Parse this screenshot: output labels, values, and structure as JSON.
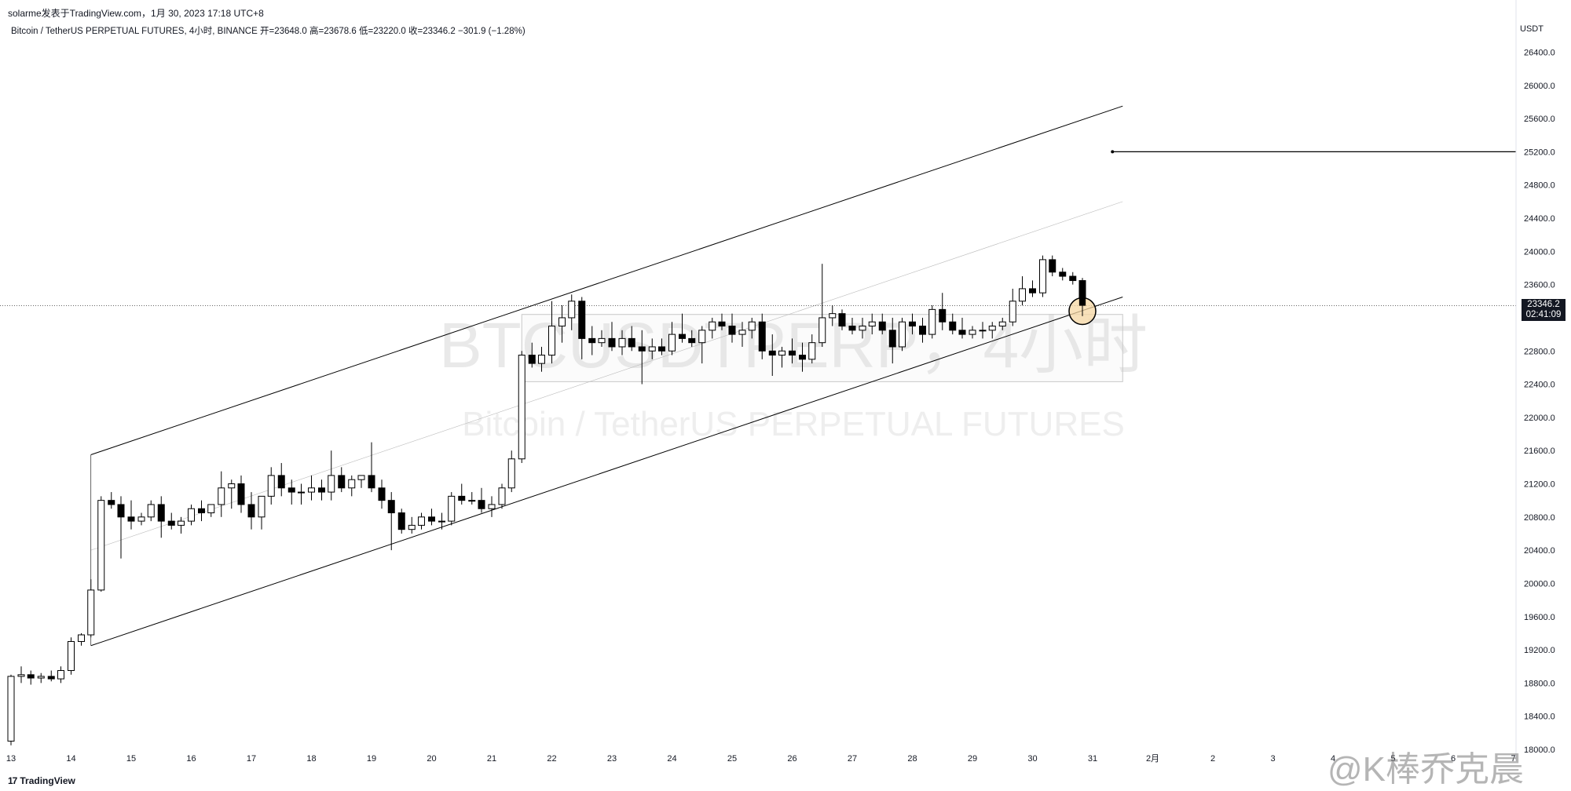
{
  "header": {
    "publish_line": "solarme发表于TradingView.com，1月 30, 2023 17:18 UTC+8",
    "symbol_line": "Bitcoin / TetherUS PERPETUAL FUTURES, 4小时, BINANCE",
    "ohlc": {
      "open_label": "开",
      "open": "=23648.0",
      "high_label": "高",
      "high": "=23678.6",
      "low_label": "低",
      "low": "=23220.0",
      "close_label": "收",
      "close": "=23346.2",
      "change": "−301.9 (−1.28%)"
    }
  },
  "watermark": {
    "line1": "BTCUSDTPERP，4小时",
    "line2": "Bitcoin / TetherUS PERPETUAL FUTURES"
  },
  "price_tag": {
    "price": "23346.2",
    "countdown": "02:41:09"
  },
  "brand": {
    "logo_mark": "17",
    "logo_text": "TradingView"
  },
  "weibo_watermark": "@K棒乔克晨",
  "colors": {
    "up": "#ffffff",
    "down": "#000000",
    "wick": "#000000",
    "highlight": "#f5d7a3"
  },
  "chart_data": {
    "type": "candlestick",
    "currency_label": "USDT",
    "y_ticks": [
      "26400.0",
      "26000.0",
      "25600.0",
      "25200.0",
      "24800.0",
      "24400.0",
      "24000.0",
      "23600.0",
      "22800.0",
      "22400.0",
      "22000.0",
      "21600.0",
      "21200.0",
      "20800.0",
      "20400.0",
      "20000.0",
      "19600.0",
      "19200.0",
      "18800.0",
      "18400.0",
      "18000.0"
    ],
    "y_tick_values": [
      26400,
      26000,
      25600,
      25200,
      24800,
      24400,
      24000,
      23600,
      22800,
      22400,
      22000,
      21600,
      21200,
      20800,
      20400,
      20000,
      19600,
      19200,
      18800,
      18400,
      18000
    ],
    "ylim": [
      18000,
      26650
    ],
    "x_ticks": [
      "13",
      "14",
      "15",
      "16",
      "17",
      "18",
      "19",
      "20",
      "21",
      "22",
      "23",
      "24",
      "25",
      "26",
      "27",
      "28",
      "29",
      "30",
      "31",
      "2月",
      "2",
      "3",
      "4",
      "5",
      "6",
      "7"
    ],
    "x_range_days": [
      0,
      26.3
    ],
    "candles": [
      [
        0.0,
        18100,
        18900,
        18050,
        18880
      ],
      [
        0.17,
        18880,
        19000,
        18800,
        18900
      ],
      [
        0.33,
        18900,
        18950,
        18780,
        18860
      ],
      [
        0.5,
        18860,
        18920,
        18800,
        18880
      ],
      [
        0.67,
        18880,
        18950,
        18820,
        18850
      ],
      [
        0.83,
        18850,
        19000,
        18800,
        18950
      ],
      [
        1.0,
        18950,
        19350,
        18900,
        19300
      ],
      [
        1.17,
        19300,
        19400,
        19250,
        19380
      ],
      [
        1.33,
        19380,
        20050,
        19350,
        19920
      ],
      [
        1.5,
        19920,
        21050,
        19900,
        21000
      ],
      [
        1.67,
        21000,
        21100,
        20900,
        20950
      ],
      [
        1.83,
        20950,
        21050,
        20300,
        20800
      ],
      [
        2.0,
        20800,
        21000,
        20650,
        20750
      ],
      [
        2.17,
        20750,
        20850,
        20700,
        20800
      ],
      [
        2.33,
        20800,
        21000,
        20750,
        20950
      ],
      [
        2.5,
        20950,
        21050,
        20550,
        20750
      ],
      [
        2.67,
        20750,
        20850,
        20650,
        20700
      ],
      [
        2.83,
        20700,
        20800,
        20600,
        20750
      ],
      [
        3.0,
        20750,
        20950,
        20700,
        20900
      ],
      [
        3.17,
        20900,
        21000,
        20750,
        20850
      ],
      [
        3.33,
        20850,
        20950,
        20800,
        20950
      ],
      [
        3.5,
        20950,
        21350,
        20800,
        21150
      ],
      [
        3.67,
        21150,
        21250,
        20900,
        21200
      ],
      [
        3.83,
        21200,
        21300,
        20850,
        20950
      ],
      [
        4.0,
        20950,
        21100,
        20650,
        20800
      ],
      [
        4.17,
        20800,
        21050,
        20650,
        21050
      ],
      [
        4.33,
        21050,
        21400,
        20950,
        21300
      ],
      [
        4.5,
        21300,
        21450,
        21050,
        21150
      ],
      [
        4.67,
        21150,
        21250,
        20950,
        21100
      ],
      [
        4.83,
        21100,
        21200,
        20950,
        21100
      ],
      [
        5.0,
        21100,
        21300,
        21000,
        21150
      ],
      [
        5.17,
        21150,
        21250,
        21000,
        21100
      ],
      [
        5.33,
        21100,
        21600,
        21000,
        21300
      ],
      [
        5.5,
        21300,
        21400,
        21100,
        21150
      ],
      [
        5.67,
        21150,
        21300,
        21050,
        21250
      ],
      [
        5.83,
        21250,
        21300,
        21150,
        21300
      ],
      [
        6.0,
        21300,
        21700,
        21100,
        21150
      ],
      [
        6.17,
        21150,
        21250,
        20900,
        21000
      ],
      [
        6.33,
        21000,
        21100,
        20400,
        20850
      ],
      [
        6.5,
        20850,
        20900,
        20600,
        20650
      ],
      [
        6.67,
        20650,
        20800,
        20600,
        20700
      ],
      [
        6.83,
        20700,
        20850,
        20650,
        20800
      ],
      [
        7.0,
        20800,
        20900,
        20700,
        20750
      ],
      [
        7.17,
        20750,
        20850,
        20650,
        20750
      ],
      [
        7.33,
        20750,
        21100,
        20700,
        21050
      ],
      [
        7.5,
        21050,
        21200,
        20950,
        21000
      ],
      [
        7.67,
        21000,
        21100,
        20950,
        21000
      ],
      [
        7.83,
        21000,
        21150,
        20850,
        20900
      ],
      [
        8.0,
        20900,
        21050,
        20800,
        20950
      ],
      [
        8.17,
        20950,
        21200,
        20900,
        21150
      ],
      [
        8.33,
        21150,
        21600,
        21100,
        21500
      ],
      [
        8.5,
        21500,
        22800,
        21450,
        22750
      ],
      [
        8.67,
        22750,
        22900,
        22600,
        22650
      ],
      [
        8.83,
        22650,
        22850,
        22550,
        22750
      ],
      [
        9.0,
        22750,
        23400,
        22650,
        23100
      ],
      [
        9.17,
        23100,
        23350,
        22900,
        23200
      ],
      [
        9.33,
        23200,
        23480,
        23050,
        23400
      ],
      [
        9.5,
        23400,
        23450,
        22700,
        22950
      ],
      [
        9.67,
        22950,
        23100,
        22750,
        22900
      ],
      [
        9.83,
        22900,
        23050,
        22850,
        22950
      ],
      [
        10.0,
        22950,
        23150,
        22800,
        22850
      ],
      [
        10.17,
        22850,
        23050,
        22750,
        22950
      ],
      [
        10.33,
        22950,
        23100,
        22800,
        22850
      ],
      [
        10.5,
        22850,
        23050,
        22400,
        22800
      ],
      [
        10.67,
        22800,
        22950,
        22700,
        22850
      ],
      [
        10.83,
        22850,
        22950,
        22750,
        22800
      ],
      [
        11.0,
        22800,
        23150,
        22750,
        23000
      ],
      [
        11.17,
        23000,
        23250,
        22900,
        22950
      ],
      [
        11.33,
        22950,
        23050,
        22850,
        22900
      ],
      [
        11.5,
        22900,
        23100,
        22650,
        23050
      ],
      [
        11.67,
        23050,
        23200,
        22950,
        23150
      ],
      [
        11.83,
        23150,
        23250,
        23050,
        23100
      ],
      [
        12.0,
        23100,
        23250,
        22900,
        23000
      ],
      [
        12.17,
        23000,
        23150,
        22850,
        23050
      ],
      [
        12.33,
        23050,
        23200,
        22950,
        23150
      ],
      [
        12.5,
        23150,
        23250,
        22700,
        22800
      ],
      [
        12.67,
        22800,
        23000,
        22500,
        22750
      ],
      [
        12.83,
        22750,
        22850,
        22600,
        22800
      ],
      [
        13.0,
        22800,
        22950,
        22650,
        22750
      ],
      [
        13.17,
        22750,
        22900,
        22550,
        22700
      ],
      [
        13.33,
        22700,
        23000,
        22650,
        22900
      ],
      [
        13.5,
        22900,
        23850,
        22850,
        23200
      ],
      [
        13.67,
        23200,
        23350,
        23100,
        23250
      ],
      [
        13.83,
        23250,
        23300,
        23050,
        23100
      ],
      [
        14.0,
        23100,
        23200,
        23000,
        23050
      ],
      [
        14.17,
        23050,
        23200,
        22950,
        23100
      ],
      [
        14.33,
        23100,
        23250,
        23000,
        23150
      ],
      [
        14.5,
        23150,
        23250,
        23000,
        23050
      ],
      [
        14.67,
        23050,
        23200,
        22650,
        22850
      ],
      [
        14.83,
        22850,
        23200,
        22800,
        23150
      ],
      [
        15.0,
        23150,
        23250,
        23000,
        23100
      ],
      [
        15.17,
        23100,
        23200,
        22900,
        23000
      ],
      [
        15.33,
        23000,
        23350,
        22950,
        23300
      ],
      [
        15.5,
        23300,
        23500,
        23050,
        23150
      ],
      [
        15.67,
        23150,
        23250,
        23000,
        23050
      ],
      [
        15.83,
        23050,
        23200,
        22950,
        23000
      ],
      [
        16.0,
        23000,
        23100,
        22950,
        23050
      ],
      [
        16.17,
        23050,
        23150,
        22950,
        23050
      ],
      [
        16.33,
        23050,
        23150,
        22950,
        23100
      ],
      [
        16.5,
        23100,
        23200,
        23050,
        23150
      ],
      [
        16.67,
        23150,
        23550,
        23100,
        23400
      ],
      [
        16.83,
        23400,
        23700,
        23350,
        23550
      ],
      [
        17.0,
        23550,
        23650,
        23450,
        23500
      ],
      [
        17.17,
        23500,
        23950,
        23450,
        23900
      ],
      [
        17.33,
        23900,
        23950,
        23700,
        23750
      ],
      [
        17.5,
        23750,
        23800,
        23650,
        23700
      ],
      [
        17.67,
        23700,
        23750,
        23600,
        23648
      ],
      [
        17.83,
        23648,
        23678.6,
        23220,
        23346.2
      ]
    ],
    "channel": {
      "upper": [
        [
          1.33,
          21550
        ],
        [
          18.5,
          25750
        ]
      ],
      "lower": [
        [
          1.33,
          19250
        ],
        [
          18.5,
          23450
        ]
      ],
      "mid": [
        [
          1.33,
          20400
        ],
        [
          18.5,
          24600
        ]
      ]
    },
    "horizontal_level": {
      "start_day": 18.33,
      "value": 25200
    },
    "current_price": 23346.2,
    "range_box": {
      "x0": 8.5,
      "x1": 18.5,
      "y0": 23240,
      "y1": 22430
    },
    "highlight_circle": {
      "x": 17.83,
      "y": 23280
    }
  }
}
